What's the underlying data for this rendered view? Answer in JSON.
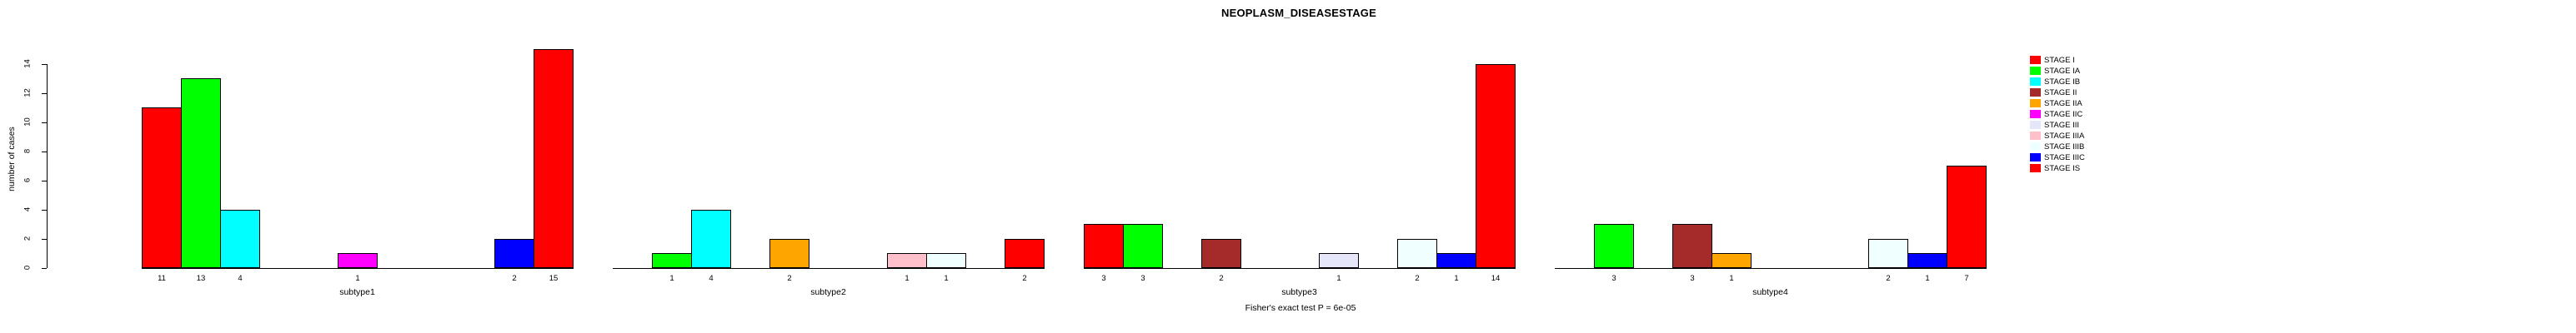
{
  "title": "NEOPLASM_DISEASESTAGE",
  "caption": "Fisher's exact test P = 6e-05",
  "ylabel": "number of cases",
  "legend": {
    "entries": [
      {
        "label": "STAGE I",
        "color": "#FF0000"
      },
      {
        "label": "STAGE IA",
        "color": "#00FF00"
      },
      {
        "label": "STAGE IB",
        "color": "#00FFFF"
      },
      {
        "label": "STAGE II",
        "color": "#A52A2A"
      },
      {
        "label": "STAGE IIA",
        "color": "#FFA500"
      },
      {
        "label": "STAGE IIC",
        "color": "#FF00FF"
      },
      {
        "label": "STAGE III",
        "color": "#E6E6FA"
      },
      {
        "label": "STAGE IIIA",
        "color": "#FFC0CB"
      },
      {
        "label": "STAGE IIIB",
        "color": "#F0FFFF"
      },
      {
        "label": "STAGE IIIC",
        "color": "#0000FF"
      },
      {
        "label": "STAGE IS",
        "color": "#FF0000"
      }
    ]
  },
  "chart_data": {
    "type": "bar",
    "title": "NEOPLASM_DISEASESTAGE",
    "xlabel": "",
    "ylabel": "number of cases",
    "caption": "Fisher's exact test P = 6e-05",
    "ylim": [
      0,
      15
    ],
    "yticks": [
      0,
      2,
      4,
      6,
      8,
      10,
      12,
      14
    ],
    "grid": false,
    "legend_position": "right",
    "stages": [
      "STAGE I",
      "STAGE IA",
      "STAGE IB",
      "STAGE II",
      "STAGE IIA",
      "STAGE IIC",
      "STAGE III",
      "STAGE IIIA",
      "STAGE IIIB",
      "STAGE IIIC",
      "STAGE IS"
    ],
    "stage_colors": [
      "#FF0000",
      "#00FF00",
      "#00FFFF",
      "#A52A2A",
      "#FFA500",
      "#FF00FF",
      "#E6E6FA",
      "#FFC0CB",
      "#F0FFFF",
      "#0000FF",
      "#FF0000"
    ],
    "groups": [
      {
        "label": "subtype1",
        "values": [
          11,
          13,
          4,
          0,
          0,
          1,
          0,
          0,
          0,
          2,
          15
        ]
      },
      {
        "label": "subtype2",
        "values": [
          0,
          1,
          4,
          0,
          2,
          0,
          0,
          1,
          1,
          0,
          2
        ]
      },
      {
        "label": "subtype3",
        "values": [
          3,
          3,
          0,
          2,
          0,
          0,
          1,
          0,
          2,
          1,
          14
        ]
      },
      {
        "label": "subtype4",
        "values": [
          0,
          3,
          0,
          3,
          1,
          0,
          0,
          0,
          2,
          1,
          7
        ]
      }
    ]
  }
}
